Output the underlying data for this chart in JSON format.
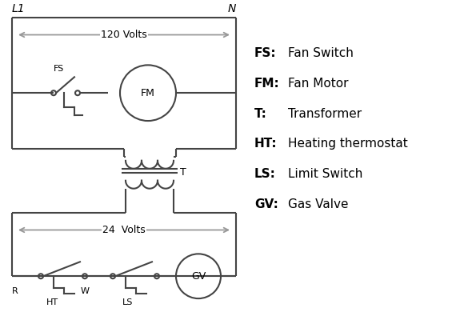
{
  "background_color": "#ffffff",
  "line_color": "#444444",
  "text_color": "#000000",
  "fig_width": 5.9,
  "fig_height": 4.0,
  "dpi": 100,
  "legend_items": [
    [
      "FS:",
      "Fan Switch"
    ],
    [
      "FM:",
      "Fan Motor"
    ],
    [
      "T:",
      "Transformer"
    ],
    [
      "HT:",
      "Heating thermostat"
    ],
    [
      "LS:",
      "Limit Switch"
    ],
    [
      "GV:",
      "Gas Valve"
    ]
  ],
  "L1_label": "L1",
  "N_label": "N",
  "volts120_label": "120 Volts",
  "volts24_label": "24  Volts",
  "T_label": "T",
  "R_label": "R",
  "W_label": "W",
  "HT_label": "HT",
  "LS_label": "LS",
  "FS_label": "FS",
  "FM_label": "FM",
  "GV_label": "GV",
  "arrow_color": "#999999"
}
